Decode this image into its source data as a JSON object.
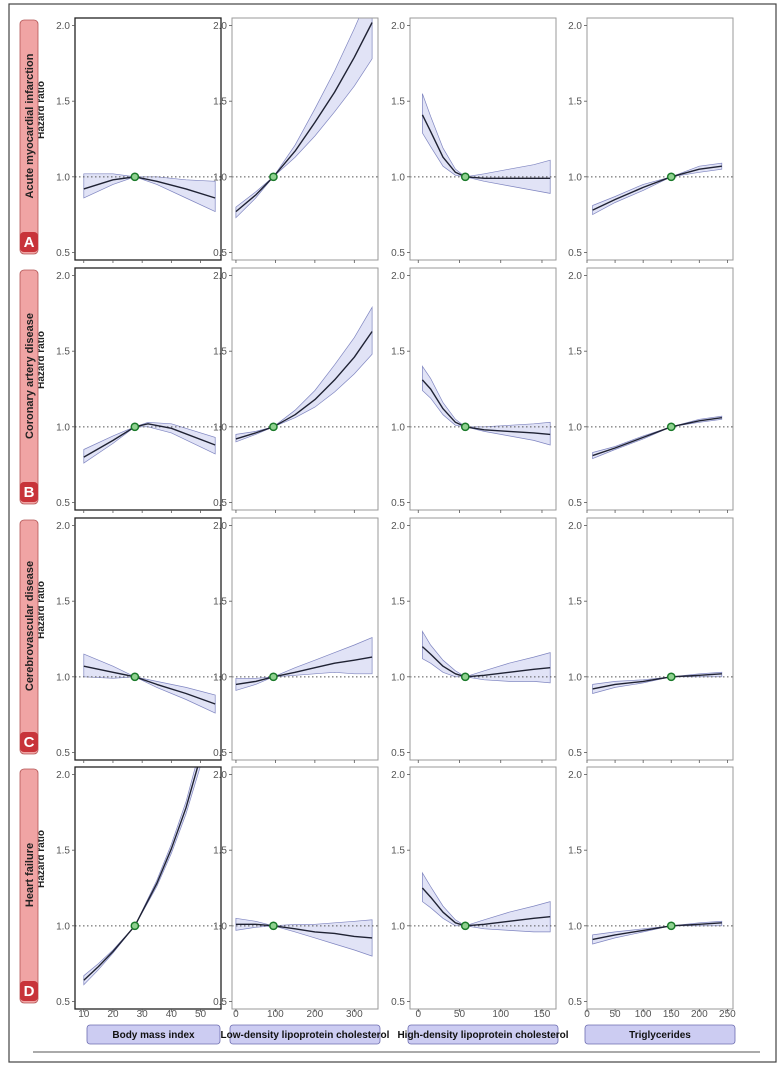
{
  "colors": {
    "band": "#c9ccef",
    "band_edge": "#7f85c0",
    "line": "#1f2233",
    "ref_point_fill": "#8fd18f",
    "ref_point_stroke": "#1a7a2a",
    "row_label_bg": "#f0a4a4",
    "row_label_edge": "#b45656",
    "badge_bg": "#c8343a",
    "col_label_bg": "#ccccf2",
    "col_label_edge": "#6c6cb0"
  },
  "y_axis_label": "Hazard ratio",
  "columns": [
    {
      "label": "Body mass index",
      "xlim": [
        7,
        57
      ],
      "ticks": [
        10,
        20,
        30,
        40,
        50
      ],
      "ref_x": 27.5
    },
    {
      "label": "Low-density lipoprotein cholesterol",
      "xlim": [
        -10,
        360
      ],
      "ticks": [
        0,
        100,
        200,
        300
      ],
      "ref_x": 95
    },
    {
      "label": "High-density lipoprotein cholesterol",
      "xlim": [
        -10,
        167
      ],
      "ticks": [
        0,
        50,
        100,
        150
      ],
      "ref_x": 57
    },
    {
      "label": "Triglycerides",
      "xlim": [
        0,
        260
      ],
      "ticks": [
        0,
        50,
        100,
        150,
        200,
        250
      ],
      "ref_x": 150
    }
  ],
  "rows": [
    {
      "letter": "A",
      "label": "Acute myocardial infarction"
    },
    {
      "letter": "B",
      "label": "Coronary artery disease"
    },
    {
      "letter": "C",
      "label": "Cerebrovascular disease"
    },
    {
      "letter": "D",
      "label": "Heart failure"
    }
  ],
  "chart_data": {
    "type": "line",
    "ylim": [
      0.45,
      2.05
    ],
    "yticks": [
      "0.5",
      "1.0",
      "1.5",
      "2.0"
    ],
    "reference_line": 1.0,
    "panels": [
      [
        {
          "x": [
            10,
            20,
            27.5,
            35,
            45,
            55
          ],
          "y": [
            0.92,
            0.98,
            1.0,
            0.97,
            0.92,
            0.86
          ],
          "lower": [
            0.86,
            0.95,
            1.0,
            0.95,
            0.86,
            0.77
          ],
          "upper": [
            1.02,
            1.02,
            1.0,
            1.0,
            0.98,
            0.97
          ]
        },
        {
          "x": [
            0,
            50,
            95,
            150,
            200,
            250,
            300,
            345
          ],
          "y": [
            0.77,
            0.88,
            1.0,
            1.17,
            1.36,
            1.56,
            1.79,
            2.02
          ],
          "lower": [
            0.73,
            0.86,
            1.0,
            1.13,
            1.27,
            1.43,
            1.6,
            1.78
          ],
          "upper": [
            0.8,
            0.9,
            1.0,
            1.21,
            1.45,
            1.7,
            1.98,
            2.25
          ]
        },
        {
          "x": [
            5,
            15,
            30,
            45,
            57,
            80,
            110,
            140,
            160
          ],
          "y": [
            1.41,
            1.3,
            1.13,
            1.03,
            1.0,
            0.99,
            0.99,
            0.99,
            0.99
          ],
          "lower": [
            1.29,
            1.2,
            1.07,
            1.01,
            1.0,
            0.97,
            0.94,
            0.91,
            0.89
          ],
          "upper": [
            1.55,
            1.4,
            1.19,
            1.05,
            1.0,
            1.02,
            1.05,
            1.08,
            1.11
          ]
        },
        {
          "x": [
            10,
            50,
            100,
            150,
            200,
            240
          ],
          "y": [
            0.78,
            0.85,
            0.93,
            1.0,
            1.05,
            1.07
          ],
          "lower": [
            0.75,
            0.83,
            0.91,
            1.0,
            1.03,
            1.05
          ],
          "upper": [
            0.81,
            0.87,
            0.95,
            1.0,
            1.07,
            1.09
          ]
        }
      ],
      [
        {
          "x": [
            10,
            20,
            27.5,
            32,
            40,
            55
          ],
          "y": [
            0.8,
            0.91,
            1.0,
            1.02,
            0.99,
            0.88
          ],
          "lower": [
            0.76,
            0.89,
            1.0,
            1.0,
            0.96,
            0.82
          ],
          "upper": [
            0.85,
            0.94,
            1.0,
            1.03,
            1.02,
            0.93
          ]
        },
        {
          "x": [
            0,
            50,
            95,
            150,
            200,
            250,
            300,
            345
          ],
          "y": [
            0.92,
            0.96,
            1.0,
            1.08,
            1.18,
            1.31,
            1.46,
            1.63
          ],
          "lower": [
            0.9,
            0.95,
            1.0,
            1.06,
            1.13,
            1.23,
            1.35,
            1.48
          ],
          "upper": [
            0.95,
            0.97,
            1.0,
            1.11,
            1.24,
            1.41,
            1.59,
            1.79
          ]
        },
        {
          "x": [
            5,
            15,
            30,
            45,
            57,
            80,
            110,
            140,
            160
          ],
          "y": [
            1.31,
            1.25,
            1.12,
            1.03,
            1.0,
            0.98,
            0.97,
            0.96,
            0.95
          ],
          "lower": [
            1.24,
            1.19,
            1.08,
            1.01,
            1.0,
            0.97,
            0.94,
            0.91,
            0.88
          ],
          "upper": [
            1.4,
            1.32,
            1.16,
            1.05,
            1.0,
            1.0,
            1.01,
            1.02,
            1.03
          ]
        },
        {
          "x": [
            10,
            50,
            100,
            150,
            200,
            240
          ],
          "y": [
            0.81,
            0.86,
            0.93,
            1.0,
            1.04,
            1.06
          ],
          "lower": [
            0.79,
            0.85,
            0.92,
            1.0,
            1.03,
            1.05
          ],
          "upper": [
            0.83,
            0.87,
            0.94,
            1.0,
            1.05,
            1.07
          ]
        }
      ],
      [
        {
          "x": [
            10,
            20,
            27.5,
            35,
            45,
            55
          ],
          "y": [
            1.07,
            1.03,
            1.0,
            0.95,
            0.89,
            0.82
          ],
          "lower": [
            1.0,
            0.99,
            1.0,
            0.93,
            0.85,
            0.76
          ],
          "upper": [
            1.15,
            1.07,
            1.0,
            0.97,
            0.93,
            0.88
          ]
        },
        {
          "x": [
            0,
            50,
            95,
            150,
            200,
            250,
            300,
            345
          ],
          "y": [
            0.95,
            0.97,
            1.0,
            1.03,
            1.06,
            1.09,
            1.11,
            1.13
          ],
          "lower": [
            0.91,
            0.95,
            1.0,
            1.01,
            1.02,
            1.03,
            1.02,
            1.02
          ],
          "upper": [
            0.99,
            0.99,
            1.0,
            1.06,
            1.11,
            1.16,
            1.21,
            1.26
          ]
        },
        {
          "x": [
            5,
            15,
            30,
            45,
            57,
            80,
            110,
            140,
            160
          ],
          "y": [
            1.2,
            1.15,
            1.07,
            1.02,
            1.0,
            1.01,
            1.03,
            1.05,
            1.06
          ],
          "lower": [
            1.12,
            1.09,
            1.03,
            1.0,
            1.0,
            0.98,
            0.97,
            0.97,
            0.96
          ],
          "upper": [
            1.3,
            1.21,
            1.11,
            1.04,
            1.0,
            1.04,
            1.09,
            1.13,
            1.16
          ]
        },
        {
          "x": [
            10,
            50,
            100,
            150,
            200,
            240
          ],
          "y": [
            0.92,
            0.95,
            0.97,
            1.0,
            1.01,
            1.02
          ],
          "lower": [
            0.89,
            0.93,
            0.96,
            1.0,
            1.0,
            1.0
          ],
          "upper": [
            0.95,
            0.97,
            0.98,
            1.0,
            1.02,
            1.03
          ]
        }
      ],
      [
        {
          "x": [
            10,
            15,
            20,
            27.5,
            35,
            40,
            45,
            50
          ],
          "y": [
            0.64,
            0.73,
            0.83,
            1.0,
            1.28,
            1.51,
            1.78,
            2.12
          ],
          "lower": [
            0.61,
            0.71,
            0.82,
            1.0,
            1.26,
            1.48,
            1.74,
            2.06
          ],
          "upper": [
            0.67,
            0.75,
            0.84,
            1.0,
            1.3,
            1.54,
            1.82,
            2.18
          ]
        },
        {
          "x": [
            0,
            50,
            95,
            150,
            200,
            250,
            300,
            345
          ],
          "y": [
            1.01,
            1.01,
            1.0,
            0.98,
            0.96,
            0.95,
            0.93,
            0.92
          ],
          "lower": [
            0.97,
            0.99,
            1.0,
            0.96,
            0.92,
            0.88,
            0.84,
            0.8
          ],
          "upper": [
            1.05,
            1.03,
            1.0,
            1.01,
            1.01,
            1.02,
            1.03,
            1.04
          ]
        },
        {
          "x": [
            5,
            15,
            30,
            45,
            57,
            80,
            110,
            140,
            160
          ],
          "y": [
            1.25,
            1.19,
            1.09,
            1.02,
            1.0,
            1.01,
            1.03,
            1.05,
            1.06
          ],
          "lower": [
            1.16,
            1.12,
            1.05,
            1.0,
            1.0,
            0.98,
            0.97,
            0.96,
            0.96
          ],
          "upper": [
            1.35,
            1.26,
            1.13,
            1.04,
            1.0,
            1.04,
            1.09,
            1.13,
            1.16
          ]
        },
        {
          "x": [
            10,
            50,
            100,
            150,
            200,
            240
          ],
          "y": [
            0.91,
            0.94,
            0.97,
            1.0,
            1.01,
            1.02
          ],
          "lower": [
            0.88,
            0.92,
            0.96,
            1.0,
            1.0,
            1.0
          ],
          "upper": [
            0.94,
            0.96,
            0.98,
            1.0,
            1.02,
            1.03
          ]
        }
      ]
    ]
  }
}
